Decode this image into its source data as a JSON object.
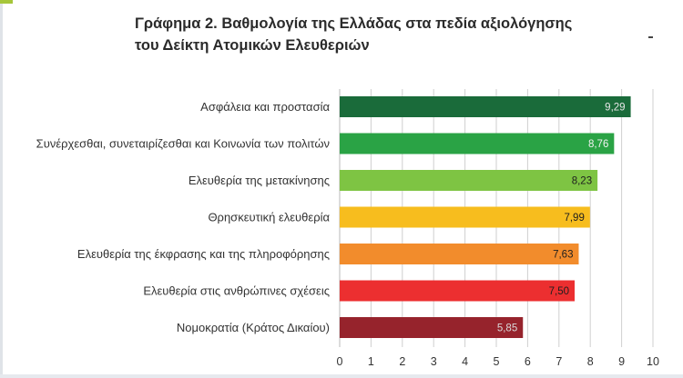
{
  "chart_data": {
    "type": "bar",
    "orientation": "horizontal",
    "title": [
      "Γράφημα 2. Βαθμολογία της Ελλάδας στα πεδία αξιολόγησης",
      "του Δείκτη Ατομικών Ελευθεριών"
    ],
    "xlabel": "",
    "ylabel": "",
    "xlim": [
      0,
      10
    ],
    "xticks": [
      "0",
      "1",
      "2",
      "3",
      "4",
      "5",
      "6",
      "7",
      "8",
      "9",
      "10"
    ],
    "grid": true,
    "legend": "none",
    "categories": [
      "Ασφάλεια και προστασία",
      "Συνέρχεσθαι, συνεταιρίζεσθαι και Κοινωνία των πολιτών",
      "Ελευθερία της μετακίνησης",
      "Θρησκευτική ελευθερία",
      "Ελευθερία της έκφρασης και της πληροφόρησης",
      "Ελευθερία στις ανθρώπινες σχέσεις",
      "Νομοκρατία (Κράτος Δικαίου)"
    ],
    "values": [
      9.29,
      8.76,
      8.23,
      7.99,
      7.63,
      7.5,
      5.85
    ],
    "value_labels": [
      "9,29",
      "8,76",
      "8,23",
      "7,99",
      "7,63",
      "7,50",
      "5,85"
    ],
    "bar_colors": [
      "#1a6b3a",
      "#2aa345",
      "#7ec443",
      "#f7bd1e",
      "#f28c2c",
      "#ec2f30",
      "#96232c"
    ],
    "label_colors": [
      "#e6e6e6",
      "#f2f2f2",
      "#1e1e1e",
      "#1e1e1e",
      "#1e1e1e",
      "#1e1e1e",
      "#d9d9d9"
    ]
  }
}
